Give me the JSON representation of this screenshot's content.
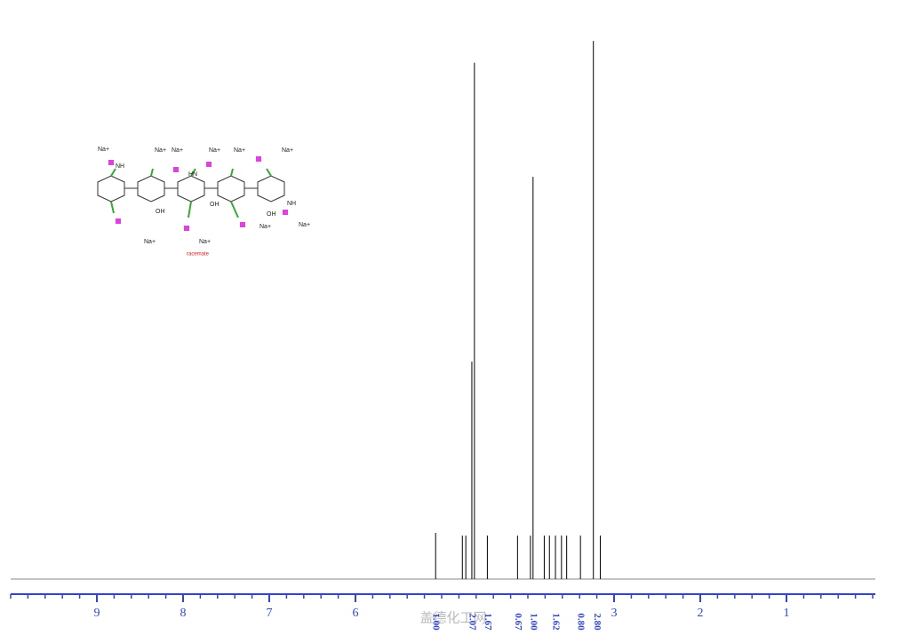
{
  "chart_data": {
    "type": "spectrum",
    "x": [
      5.07,
      4.76,
      4.72,
      4.65,
      4.62,
      4.47,
      4.12,
      3.97,
      3.94,
      3.81,
      3.75,
      3.68,
      3.61,
      3.55,
      3.39,
      3.24,
      3.16
    ],
    "values": [
      8.5,
      8,
      8,
      40,
      95,
      8,
      8,
      8,
      74,
      8,
      8,
      8,
      8,
      8,
      8,
      99,
      8
    ],
    "color": "#000000",
    "xlim": [
      10,
      0
    ],
    "ylim": [
      0,
      100
    ],
    "xticks": [
      9,
      8,
      7,
      6,
      3,
      2,
      1
    ],
    "axis_color": "#3344cc",
    "integrals": [
      {
        "x": 5.07,
        "label": "1.00"
      },
      {
        "x": 4.65,
        "label": "2.07"
      },
      {
        "x": 4.47,
        "label": "1.67"
      },
      {
        "x": 4.12,
        "label": "0.67"
      },
      {
        "x": 3.94,
        "label": "1.00"
      },
      {
        "x": 3.68,
        "label": "1.62"
      },
      {
        "x": 3.39,
        "label": "0.80"
      },
      {
        "x": 3.2,
        "label": "2.80"
      }
    ]
  },
  "molecule": {
    "labels": [
      "Na+",
      "Na+",
      "Na+",
      "Na+",
      "Na+",
      "Na+",
      "Na+",
      "Na+",
      "Na+",
      "Na+",
      "NH",
      "NH",
      "OH",
      "OH",
      "OH",
      "HN"
    ],
    "note": "racemate"
  },
  "watermark": "盖德化工网"
}
